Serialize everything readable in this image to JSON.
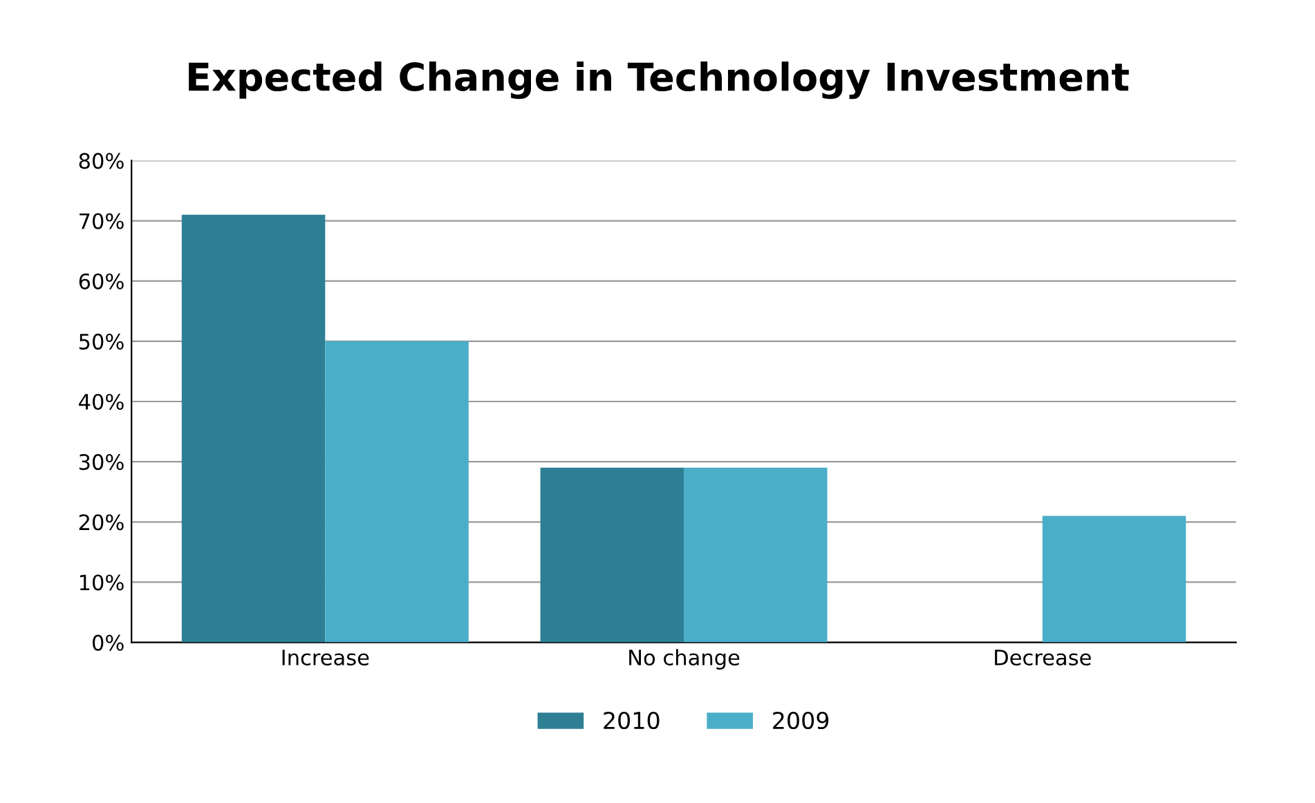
{
  "chart_data": {
    "type": "bar",
    "title": "Expected Change in Technology Investment",
    "categories": [
      "Increase",
      "No change",
      "Decrease"
    ],
    "series": [
      {
        "name": "2010",
        "color": "#2e7f94",
        "values": [
          71,
          29,
          0
        ]
      },
      {
        "name": "2009",
        "color": "#4aaec9",
        "values": [
          50,
          29,
          21
        ]
      }
    ],
    "ylim": [
      0,
      80
    ],
    "yticks": [
      {
        "value": 0,
        "label": "0%"
      },
      {
        "value": 10,
        "label": "10%"
      },
      {
        "value": 20,
        "label": "20%"
      },
      {
        "value": 30,
        "label": "30%"
      },
      {
        "value": 40,
        "label": "40%"
      },
      {
        "value": 50,
        "label": "50%"
      },
      {
        "value": 60,
        "label": "60%"
      },
      {
        "value": 70,
        "label": "70%"
      },
      {
        "value": 80,
        "label": "80%"
      }
    ],
    "grid": "y",
    "legend": "bottom"
  }
}
